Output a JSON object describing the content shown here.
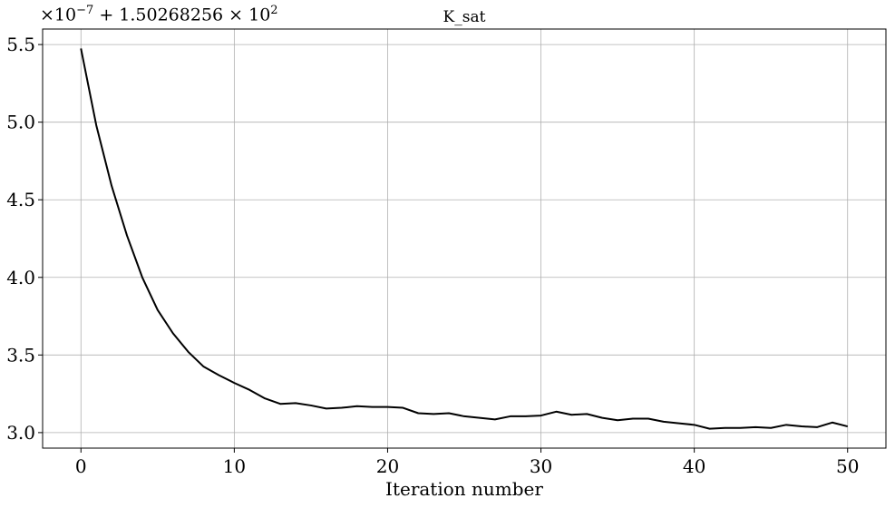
{
  "chart_data": {
    "type": "line",
    "title": "K_sat",
    "xlabel": "Iteration number",
    "ylabel": "",
    "offset_label": {
      "prefix": "×10",
      "exponent": "−7",
      "middle": " + 1.50268256 × 10",
      "exponent2": "2"
    },
    "xlim": [
      -2.5,
      52.5
    ],
    "ylim": [
      2.9,
      5.6
    ],
    "xticks": [
      0,
      10,
      20,
      30,
      40,
      50
    ],
    "xtick_labels": [
      "0",
      "10",
      "20",
      "30",
      "40",
      "50"
    ],
    "yticks": [
      3.0,
      3.5,
      4.0,
      4.5,
      5.0,
      5.5
    ],
    "ytick_labels": [
      "3.0",
      "3.5",
      "4.0",
      "4.5",
      "5.0",
      "5.5"
    ],
    "grid": true,
    "line_color": "#000000",
    "series": [
      {
        "x": [
          0,
          1,
          2,
          3,
          4,
          5,
          6,
          7,
          8,
          9,
          10,
          11,
          12,
          13,
          14,
          15,
          16,
          17,
          18,
          19,
          20,
          21,
          22,
          23,
          24,
          25,
          26,
          27,
          28,
          29,
          30,
          31,
          32,
          33,
          34,
          35,
          36,
          37,
          38,
          39,
          40,
          41,
          42,
          43,
          44,
          45,
          46,
          47,
          48,
          49,
          50
        ],
        "values": [
          5.475,
          4.98,
          4.59,
          4.27,
          4.0,
          3.79,
          3.64,
          3.52,
          3.425,
          3.37,
          3.32,
          3.275,
          3.22,
          3.185,
          3.19,
          3.175,
          3.155,
          3.16,
          3.17,
          3.165,
          3.165,
          3.16,
          3.125,
          3.12,
          3.125,
          3.105,
          3.095,
          3.085,
          3.105,
          3.105,
          3.11,
          3.135,
          3.115,
          3.12,
          3.095,
          3.08,
          3.09,
          3.09,
          3.07,
          3.06,
          3.05,
          3.025,
          3.03,
          3.03,
          3.035,
          3.03,
          3.05,
          3.04,
          3.035,
          3.065,
          3.04
        ]
      }
    ]
  }
}
